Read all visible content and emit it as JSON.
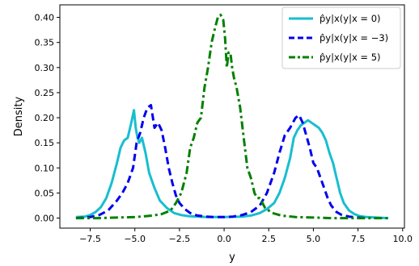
{
  "chart_data": {
    "type": "line",
    "title": "",
    "xlabel": "y",
    "ylabel": "Density",
    "xlim": [
      -9.2,
      10.1
    ],
    "ylim": [
      -0.02,
      0.425
    ],
    "xticks": [
      -7.5,
      -5.0,
      -2.5,
      0.0,
      2.5,
      5.0,
      7.5,
      10.0
    ],
    "xtick_labels": [
      "−7.5",
      "−5.0",
      "−2.5",
      "0.0",
      "2.5",
      "5.0",
      "7.5",
      "10.0"
    ],
    "yticks": [
      0.0,
      0.05,
      0.1,
      0.15,
      0.2,
      0.25,
      0.3,
      0.35,
      0.4
    ],
    "ytick_labels": [
      "0.00",
      "0.05",
      "0.10",
      "0.15",
      "0.20",
      "0.25",
      "0.30",
      "0.35",
      "0.40"
    ],
    "grid": false,
    "legend_position": "top-right",
    "series": [
      {
        "name": "p̂y|x(y|x = 0)",
        "color": "#17becf",
        "dash": "solid",
        "x": [
          -8.3,
          -7.8,
          -7.5,
          -7.2,
          -6.9,
          -6.6,
          -6.3,
          -6.0,
          -5.8,
          -5.6,
          -5.4,
          -5.2,
          -5.05,
          -4.95,
          -4.85,
          -4.75,
          -4.6,
          -4.4,
          -4.2,
          -3.9,
          -3.6,
          -3.2,
          -2.8,
          -2.4,
          -2.0,
          -1.5,
          -1.0,
          0.0,
          1.0,
          1.5,
          2.0,
          2.4,
          2.8,
          3.1,
          3.4,
          3.7,
          3.9,
          4.1,
          4.3,
          4.5,
          4.7,
          4.9,
          5.1,
          5.3,
          5.5,
          5.7,
          5.9,
          6.1,
          6.3,
          6.5,
          6.7,
          7.0,
          7.3,
          7.6,
          8.0,
          8.5,
          9.2
        ],
        "y": [
          0.002,
          0.003,
          0.006,
          0.012,
          0.022,
          0.04,
          0.07,
          0.11,
          0.14,
          0.155,
          0.16,
          0.19,
          0.215,
          0.18,
          0.16,
          0.15,
          0.16,
          0.13,
          0.09,
          0.06,
          0.035,
          0.02,
          0.01,
          0.006,
          0.004,
          0.003,
          0.002,
          0.002,
          0.003,
          0.005,
          0.01,
          0.018,
          0.03,
          0.05,
          0.08,
          0.12,
          0.16,
          0.175,
          0.185,
          0.19,
          0.195,
          0.19,
          0.185,
          0.18,
          0.17,
          0.155,
          0.13,
          0.11,
          0.08,
          0.05,
          0.03,
          0.015,
          0.008,
          0.004,
          0.002,
          0.001,
          0.0
        ]
      },
      {
        "name": "p̂y|x(y|x = −3)",
        "color": "#0000ee",
        "dash": "dashed",
        "x": [
          -8.3,
          -7.5,
          -7.0,
          -6.5,
          -6.0,
          -5.7,
          -5.4,
          -5.1,
          -4.9,
          -4.7,
          -4.5,
          -4.3,
          -4.1,
          -3.9,
          -3.7,
          -3.5,
          -3.3,
          -3.1,
          -2.9,
          -2.7,
          -2.5,
          -2.2,
          -1.9,
          -1.5,
          -1.0,
          -0.5,
          0.0,
          0.5,
          1.0,
          1.5,
          2.0,
          2.4,
          2.8,
          3.1,
          3.4,
          3.7,
          4.0,
          4.2,
          4.4,
          4.6,
          4.8,
          5.0,
          5.2,
          5.4,
          5.6,
          5.8,
          6.0,
          6.3,
          6.6,
          7.0,
          7.5,
          8.0
        ],
        "y": [
          0.0,
          0.002,
          0.006,
          0.015,
          0.035,
          0.05,
          0.07,
          0.1,
          0.15,
          0.17,
          0.2,
          0.22,
          0.225,
          0.18,
          0.19,
          0.175,
          0.14,
          0.1,
          0.07,
          0.045,
          0.03,
          0.018,
          0.01,
          0.005,
          0.003,
          0.002,
          0.002,
          0.003,
          0.006,
          0.012,
          0.025,
          0.05,
          0.09,
          0.13,
          0.165,
          0.18,
          0.2,
          0.205,
          0.19,
          0.165,
          0.14,
          0.11,
          0.1,
          0.08,
          0.06,
          0.04,
          0.025,
          0.012,
          0.006,
          0.003,
          0.001,
          0.0
        ]
      },
      {
        "name": "p̂y|x(y|x = 5)",
        "color": "#008000",
        "dash": "dashdot",
        "x": [
          -8.3,
          -7.0,
          -6.0,
          -5.0,
          -4.0,
          -3.5,
          -3.0,
          -2.7,
          -2.4,
          -2.1,
          -1.9,
          -1.7,
          -1.5,
          -1.3,
          -1.1,
          -0.9,
          -0.7,
          -0.5,
          -0.35,
          -0.2,
          -0.05,
          0.05,
          0.15,
          0.25,
          0.35,
          0.45,
          0.55,
          0.7,
          0.9,
          1.1,
          1.3,
          1.5,
          1.7,
          1.85,
          2.0,
          2.3,
          2.7,
          3.2,
          4.0,
          5.0,
          6.0,
          7.0,
          8.0,
          9.2
        ],
        "y": [
          0.0,
          0.0,
          0.001,
          0.002,
          0.005,
          0.008,
          0.015,
          0.03,
          0.05,
          0.09,
          0.14,
          0.16,
          0.19,
          0.2,
          0.26,
          0.3,
          0.35,
          0.38,
          0.4,
          0.405,
          0.395,
          0.36,
          0.3,
          0.33,
          0.33,
          0.3,
          0.28,
          0.26,
          0.22,
          0.16,
          0.1,
          0.08,
          0.05,
          0.04,
          0.04,
          0.02,
          0.01,
          0.005,
          0.002,
          0.001,
          0.0,
          0.0,
          0.0,
          0.0
        ]
      }
    ]
  }
}
